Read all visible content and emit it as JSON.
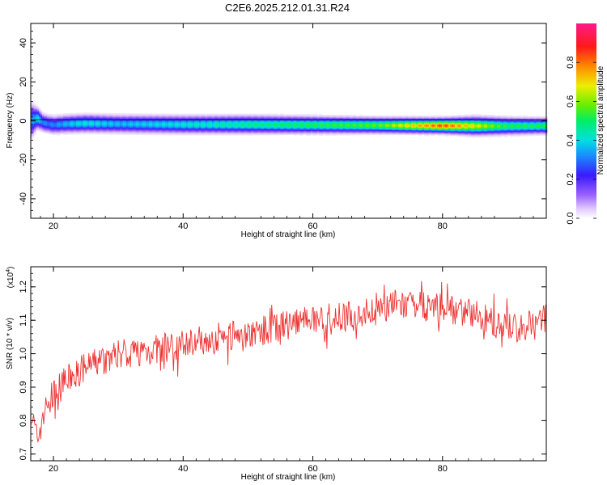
{
  "title": "C2E6.2025.212.01.31.R24",
  "colors": {
    "snr_line": "#ee3333",
    "axis": "#000000",
    "zero_line": "#000000"
  },
  "chart_data": [
    {
      "type": "heatmap",
      "xlabel": "Height of straight line (km)",
      "ylabel": "Frequency (Hz)",
      "xlim": [
        16.5,
        96
      ],
      "ylim": [
        -50,
        50
      ],
      "xticks": [
        20,
        40,
        60,
        80
      ],
      "yticks": [
        -40,
        -20,
        0,
        20,
        40
      ],
      "ytick_labels": [
        "-40",
        "-20",
        "0",
        "20",
        "40"
      ],
      "grid": false,
      "colorbar": {
        "label": "Normalized spectral amplitude",
        "range": [
          0,
          1
        ],
        "ticks": [
          0.0,
          0.2,
          0.4,
          0.6,
          0.8
        ],
        "tick_labels": [
          "0.0",
          "0.2",
          "0.4",
          "0.6",
          "0.8"
        ],
        "colormap": "rainbow",
        "placement": "right"
      },
      "ridge": {
        "description_x": [
          16.5,
          17.5,
          18.5,
          20,
          22,
          25,
          30,
          40,
          50,
          60,
          70,
          80,
          85,
          90,
          95
        ],
        "center_hz": [
          0,
          1.5,
          -1,
          -2,
          -1.5,
          -1.2,
          -1.5,
          -1.8,
          -1.8,
          -2,
          -2.2,
          -2.4,
          -2.5,
          -2.6,
          -2.5
        ],
        "half_width_hz": [
          6,
          3.5,
          3,
          3,
          3,
          3,
          3,
          3,
          3,
          2.8,
          2.6,
          2.5,
          3,
          2.8,
          2.6
        ],
        "peak_amplitude": [
          0.3,
          0.4,
          0.3,
          0.3,
          0.35,
          0.4,
          0.35,
          0.4,
          0.45,
          0.5,
          0.55,
          0.8,
          0.65,
          0.5,
          0.5
        ]
      }
    },
    {
      "type": "line",
      "xlabel": "Height of straight line (km)",
      "ylabel": "SNR (10 * v/v)",
      "scale_label": "(x10",
      "scale_exponent": "4",
      "scale_close": ")",
      "xlim": [
        16.5,
        96
      ],
      "ylim": [
        0.68,
        1.26
      ],
      "xticks": [
        20,
        40,
        60,
        80
      ],
      "yticks": [
        0.7,
        0.8,
        0.9,
        1.0,
        1.1,
        1.2
      ],
      "ytick_labels": [
        "0.7",
        "0.8",
        "0.9",
        "1.0",
        "1.1",
        "1.2"
      ],
      "grid": false,
      "series": [
        {
          "trend_x": [
            16.5,
            17.5,
            18.5,
            20,
            22,
            25,
            30,
            35,
            40,
            45,
            50,
            55,
            60,
            65,
            70,
            72,
            75,
            80,
            82,
            85,
            88,
            90,
            92,
            94,
            96
          ],
          "trend_y": [
            0.83,
            0.74,
            0.82,
            0.88,
            0.92,
            0.96,
            1.0,
            1.01,
            1.03,
            1.05,
            1.06,
            1.08,
            1.1,
            1.11,
            1.13,
            1.15,
            1.14,
            1.14,
            1.13,
            1.12,
            1.09,
            1.08,
            1.07,
            1.1,
            1.12
          ],
          "noise_amplitude": 0.045,
          "samples": 720
        }
      ]
    }
  ]
}
